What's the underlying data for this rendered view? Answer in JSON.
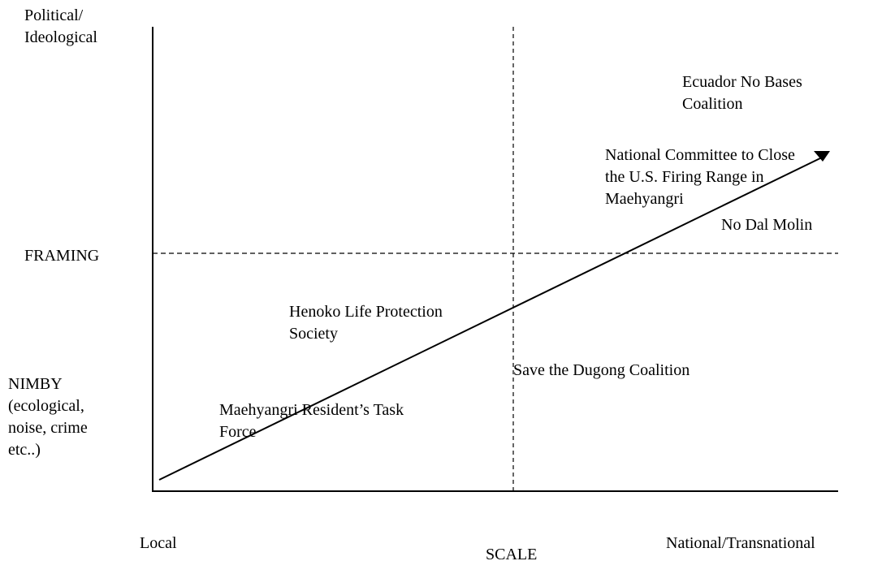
{
  "axes": {
    "y_top": [
      "Political/",
      "Ideological"
    ],
    "y_middle": [
      "FRAMING"
    ],
    "y_bottom": [
      "NIMBY",
      "(ecological,",
      "noise, crime",
      "etc..)"
    ],
    "x_left": [
      "Local"
    ],
    "x_middle": [
      "SCALE"
    ],
    "x_right": [
      "National/Transnational"
    ]
  },
  "nodes": [
    {
      "label": [
        "Ecuador No Bases",
        "Coalition"
      ]
    },
    {
      "label": [
        "National Committee to Close",
        "the U.S. Firing Range in",
        "Maehyangri"
      ]
    },
    {
      "label": [
        "No Dal Molin"
      ]
    },
    {
      "label": [
        "Henoko Life Protection",
        "Society"
      ]
    },
    {
      "label": [
        "Save the Dugong Coalition"
      ]
    },
    {
      "label": [
        "Maehyangri Resident’s Task",
        "Force"
      ]
    }
  ]
}
